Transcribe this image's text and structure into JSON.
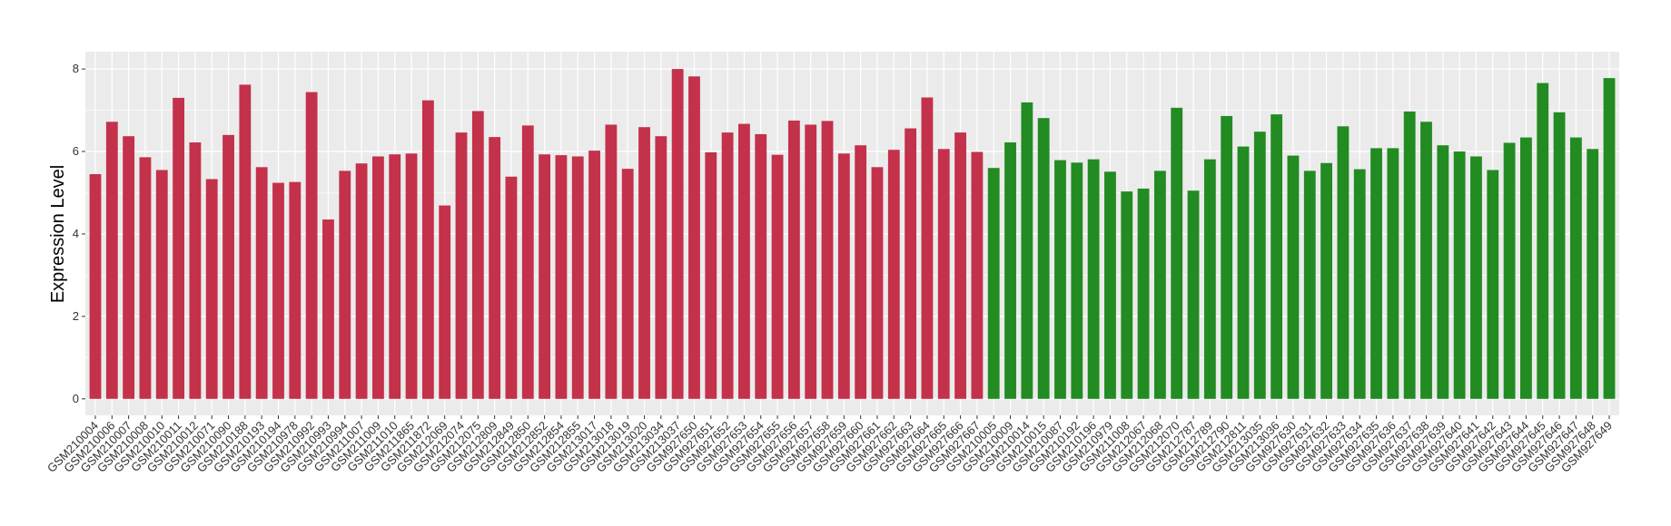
{
  "chart_data": {
    "type": "bar",
    "y_label": "Expression Level",
    "categories": [
      "GSM210004",
      "GSM210006",
      "GSM210007",
      "GSM210008",
      "GSM210010",
      "GSM210011",
      "GSM210012",
      "GSM210071",
      "GSM210090",
      "GSM210188",
      "GSM210193",
      "GSM210194",
      "GSM210978",
      "GSM210992",
      "GSM210993",
      "GSM210994",
      "GSM211007",
      "GSM211009",
      "GSM211010",
      "GSM211865",
      "GSM211872",
      "GSM212069",
      "GSM212074",
      "GSM212075",
      "GSM212809",
      "GSM212849",
      "GSM212850",
      "GSM212852",
      "GSM212854",
      "GSM212855",
      "GSM213017",
      "GSM213018",
      "GSM213019",
      "GSM213020",
      "GSM213034",
      "GSM213037",
      "GSM927650",
      "GSM927651",
      "GSM927652",
      "GSM927653",
      "GSM927654",
      "GSM927655",
      "GSM927656",
      "GSM927657",
      "GSM927658",
      "GSM927659",
      "GSM927660",
      "GSM927661",
      "GSM927662",
      "GSM927663",
      "GSM927664",
      "GSM927665",
      "GSM927666",
      "GSM927667",
      "GSM210005",
      "GSM210009",
      "GSM210014",
      "GSM210015",
      "GSM210087",
      "GSM210192",
      "GSM210196",
      "GSM210979",
      "GSM211008",
      "GSM212067",
      "GSM212068",
      "GSM212070",
      "GSM212787",
      "GSM212789",
      "GSM212790",
      "GSM212811",
      "GSM213035",
      "GSM213036",
      "GSM927630",
      "GSM927631",
      "GSM927632",
      "GSM927633",
      "GSM927634",
      "GSM927635",
      "GSM927636",
      "GSM927637",
      "GSM927638",
      "GSM927639",
      "GSM927640",
      "GSM927641",
      "GSM927642",
      "GSM927643",
      "GSM927644",
      "GSM927645",
      "GSM927646",
      "GSM927647",
      "GSM927648",
      "GSM927649"
    ],
    "values": [
      5.45,
      6.72,
      6.37,
      5.86,
      5.55,
      7.3,
      6.22,
      5.33,
      6.4,
      7.62,
      5.62,
      5.24,
      5.26,
      7.44,
      4.35,
      5.53,
      5.71,
      5.88,
      5.93,
      5.95,
      7.24,
      4.69,
      6.46,
      6.98,
      6.35,
      5.39,
      6.63,
      5.93,
      5.91,
      5.88,
      6.02,
      6.65,
      5.58,
      6.59,
      6.37,
      8.0,
      7.82,
      5.98,
      6.46,
      6.67,
      6.42,
      5.92,
      6.75,
      6.65,
      6.74,
      5.95,
      6.15,
      5.62,
      6.04,
      6.56,
      7.31,
      6.06,
      6.46,
      5.99,
      5.6,
      6.22,
      7.19,
      6.81,
      5.79,
      5.73,
      5.81,
      5.51,
      5.03,
      5.1,
      5.53,
      7.06,
      5.05,
      5.81,
      6.86,
      6.12,
      6.48,
      6.9,
      5.9,
      5.53,
      5.72,
      6.61,
      5.57,
      6.08,
      6.08,
      6.97,
      6.72,
      6.15,
      6.0,
      5.88,
      5.55,
      6.21,
      6.34,
      7.66,
      6.95,
      6.34,
      6.06,
      7.78
    ],
    "colors": [
      "#c3314a",
      "#c3314a",
      "#c3314a",
      "#c3314a",
      "#c3314a",
      "#c3314a",
      "#c3314a",
      "#c3314a",
      "#c3314a",
      "#c3314a",
      "#c3314a",
      "#c3314a",
      "#c3314a",
      "#c3314a",
      "#c3314a",
      "#c3314a",
      "#c3314a",
      "#c3314a",
      "#c3314a",
      "#c3314a",
      "#c3314a",
      "#c3314a",
      "#c3314a",
      "#c3314a",
      "#c3314a",
      "#c3314a",
      "#c3314a",
      "#c3314a",
      "#c3314a",
      "#c3314a",
      "#c3314a",
      "#c3314a",
      "#c3314a",
      "#c3314a",
      "#c3314a",
      "#c3314a",
      "#c3314a",
      "#c3314a",
      "#c3314a",
      "#c3314a",
      "#c3314a",
      "#c3314a",
      "#c3314a",
      "#c3314a",
      "#c3314a",
      "#c3314a",
      "#c3314a",
      "#c3314a",
      "#c3314a",
      "#c3314a",
      "#c3314a",
      "#c3314a",
      "#c3314a",
      "#c3314a",
      "#228b22",
      "#228b22",
      "#228b22",
      "#228b22",
      "#228b22",
      "#228b22",
      "#228b22",
      "#228b22",
      "#228b22",
      "#228b22",
      "#228b22",
      "#228b22",
      "#228b22",
      "#228b22",
      "#228b22",
      "#228b22",
      "#228b22",
      "#228b22",
      "#228b22",
      "#228b22",
      "#228b22",
      "#228b22",
      "#228b22",
      "#228b22",
      "#228b22",
      "#228b22",
      "#228b22",
      "#228b22",
      "#228b22",
      "#228b22",
      "#228b22",
      "#228b22",
      "#228b22",
      "#228b22",
      "#228b22",
      "#228b22",
      "#228b22",
      "#228b22"
    ],
    "ylim": [
      -0.4,
      8.42
    ],
    "yticks": [
      0,
      2,
      4,
      6,
      8
    ],
    "grid": true
  }
}
